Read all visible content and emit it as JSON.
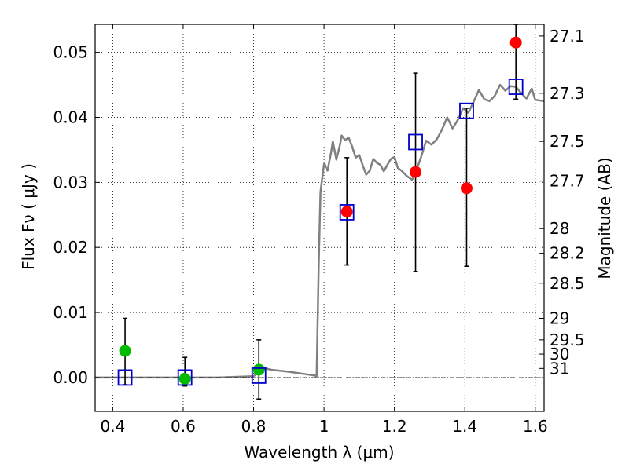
{
  "chart_data": {
    "type": "scatter",
    "xlabel": "Wavelength  λ (μm)",
    "ylabel": "Flux  Fν  ( μJy )",
    "y2label": "Magnitude (AB)",
    "xlim": [
      0.35,
      1.625
    ],
    "ylim": [
      -0.0052,
      0.0543
    ],
    "grid": true,
    "x_ticks": [
      0.4,
      0.6,
      0.8,
      1.0,
      1.2,
      1.4,
      1.6
    ],
    "x_tick_labels": [
      "0.4",
      "0.6",
      "0.8",
      "1",
      "1.2",
      "1.4",
      "1.6"
    ],
    "y_ticks": [
      0.0,
      0.01,
      0.02,
      0.03,
      0.04,
      0.05
    ],
    "y_tick_labels": [
      "0.00",
      "0.01",
      "0.02",
      "0.03",
      "0.04",
      "0.05"
    ],
    "mag_ticks": [
      {
        "label": "27.1",
        "flux": 0.0525
      },
      {
        "label": "27.3",
        "flux": 0.0437
      },
      {
        "label": "27.5",
        "flux": 0.0363
      },
      {
        "label": "27.7",
        "flux": 0.0302
      },
      {
        "label": "28",
        "flux": 0.0229
      },
      {
        "label": "28.2",
        "flux": 0.0191
      },
      {
        "label": "28.5",
        "flux": 0.0145
      },
      {
        "label": "29",
        "flux": 0.0091
      },
      {
        "label": "29.5",
        "flux": 0.0058
      },
      {
        "label": "30",
        "flux": 0.0036
      },
      {
        "label": "31",
        "flux": 0.0014
      }
    ],
    "colors": {
      "detection": "#ff0000",
      "upper_limit": "#00bb00",
      "model_point": "#0000cc",
      "sed": "#808080",
      "errorbar": "#000000"
    },
    "series": [
      {
        "type": "scatter",
        "marker": "circle",
        "color": "#ff0000",
        "x": [
          1.065,
          1.26,
          1.405,
          1.545
        ],
        "y": [
          0.0255,
          0.0316,
          0.0291,
          0.0515
        ]
      },
      {
        "type": "scatter",
        "marker": "circle",
        "color": "#00bb00",
        "x": [
          0.435,
          0.605,
          0.815
        ],
        "y": [
          0.0041,
          -0.0002,
          0.0012
        ]
      },
      {
        "type": "scatter",
        "marker": "square-open",
        "color": "#0000cc",
        "x": [
          0.435,
          0.605,
          0.815,
          1.065,
          1.26,
          1.405,
          1.545
        ],
        "y": [
          0.0,
          0.0,
          0.0003,
          0.0254,
          0.0362,
          0.041,
          0.0447
        ]
      }
    ],
    "errorbars": [
      {
        "x": 0.435,
        "y": 0.0041,
        "lo": -0.0011,
        "hi": 0.0091
      },
      {
        "x": 0.605,
        "y": -0.0002,
        "lo": -0.0013,
        "hi": 0.0031
      },
      {
        "x": 0.815,
        "y": 0.0012,
        "lo": -0.0033,
        "hi": 0.0058
      },
      {
        "x": 1.065,
        "y": 0.0255,
        "lo": 0.0173,
        "hi": 0.0338
      },
      {
        "x": 1.26,
        "y": 0.0316,
        "lo": 0.0163,
        "hi": 0.0468
      },
      {
        "x": 1.405,
        "y": 0.0291,
        "lo": 0.0171,
        "hi": 0.0414
      },
      {
        "x": 1.545,
        "y": 0.0515,
        "lo": 0.0428,
        "hi": 0.0543
      }
    ],
    "model_sed": {
      "x": [
        0.35,
        0.5,
        0.6,
        0.7,
        0.8,
        0.82,
        0.835,
        0.85,
        0.9,
        0.95,
        0.975,
        0.979,
        0.985,
        0.99,
        1.0,
        1.01,
        1.02,
        1.025,
        1.035,
        1.045,
        1.05,
        1.06,
        1.07,
        1.08,
        1.09,
        1.1,
        1.11,
        1.12,
        1.13,
        1.14,
        1.15,
        1.16,
        1.17,
        1.18,
        1.19,
        1.2,
        1.21,
        1.22,
        1.235,
        1.25,
        1.26,
        1.275,
        1.29,
        1.305,
        1.32,
        1.335,
        1.35,
        1.365,
        1.38,
        1.395,
        1.41,
        1.425,
        1.44,
        1.455,
        1.47,
        1.485,
        1.5,
        1.515,
        1.53,
        1.545,
        1.56,
        1.575,
        1.59,
        1.6,
        1.625
      ],
      "y": [
        0.0,
        0.0,
        0.0,
        0.0,
        0.0002,
        0.0011,
        0.0014,
        0.0012,
        0.0009,
        0.0005,
        0.0003,
        0.0001,
        0.0175,
        0.0285,
        0.0328,
        0.0318,
        0.0346,
        0.0363,
        0.0335,
        0.0357,
        0.0372,
        0.0365,
        0.0369,
        0.0355,
        0.0338,
        0.0342,
        0.0326,
        0.0312,
        0.0318,
        0.0336,
        0.033,
        0.0327,
        0.0317,
        0.0327,
        0.0336,
        0.0339,
        0.0322,
        0.0318,
        0.031,
        0.0304,
        0.0315,
        0.0338,
        0.0364,
        0.0358,
        0.0366,
        0.0381,
        0.04,
        0.0383,
        0.0396,
        0.0414,
        0.0407,
        0.0424,
        0.0442,
        0.0428,
        0.0425,
        0.0433,
        0.045,
        0.0441,
        0.0448,
        0.0447,
        0.0437,
        0.0429,
        0.0444,
        0.0427,
        0.0425
      ]
    }
  }
}
